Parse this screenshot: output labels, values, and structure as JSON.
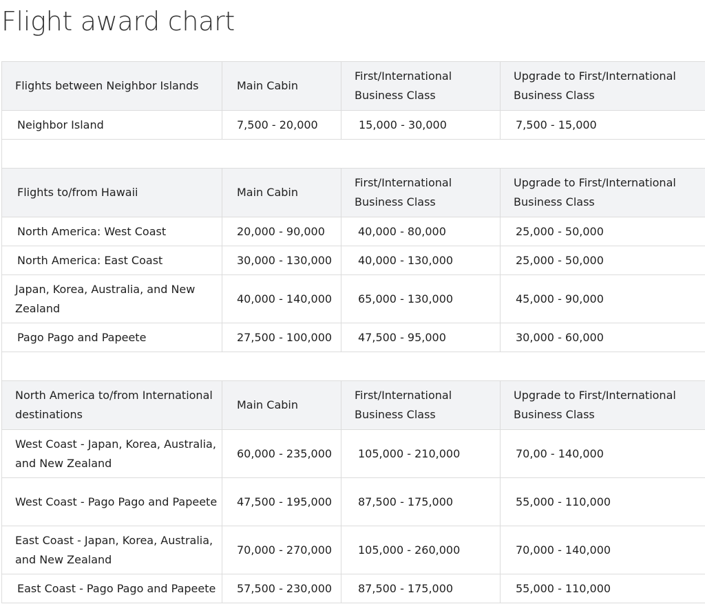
{
  "page": {
    "title": "Flight award chart"
  },
  "sections": [
    {
      "header": {
        "route": "Flights between Neighbor Islands",
        "main_cabin": "Main Cabin",
        "first": "First/International Business Class",
        "upgrade": "Upgrade to First/International Business Class"
      },
      "rows": [
        {
          "route": "Neighbor Island",
          "main_cabin": "7,500 - 20,000",
          "first": "15,000 - 30,000",
          "upgrade": "7,500 - 15,000"
        }
      ]
    },
    {
      "header": {
        "route": "Flights to/from Hawaii",
        "main_cabin": "Main Cabin",
        "first": "First/International Business Class",
        "upgrade": "Upgrade to First/International Business Class"
      },
      "rows": [
        {
          "route": "North America: West Coast",
          "main_cabin": "20,000 - 90,000",
          "first": "40,000 - 80,000",
          "upgrade": "25,000 - 50,000"
        },
        {
          "route": "North America: East Coast",
          "main_cabin": "30,000 - 130,000",
          "first": "40,000 - 130,000",
          "upgrade": "25,000 - 50,000"
        },
        {
          "route": "Japan, Korea, Australia, and New Zealand",
          "main_cabin": "40,000 - 140,000",
          "first": "65,000 - 130,000",
          "upgrade": "45,000 - 90,000"
        },
        {
          "route": "Pago Pago and Papeete",
          "main_cabin": "27,500 - 100,000",
          "first": "47,500 - 95,000",
          "upgrade": "30,000 - 60,000"
        }
      ]
    },
    {
      "header": {
        "route": "North America to/from International destinations",
        "main_cabin": "Main Cabin",
        "first": "First/International Business Class",
        "upgrade": "Upgrade to First/International Business Class"
      },
      "rows": [
        {
          "route": "West Coast - Japan, Korea, Australia, and New Zealand",
          "main_cabin": "60,000 - 235,000",
          "first": "105,000 - 210,000",
          "upgrade": "70,00 - 140,000"
        },
        {
          "route": "West Coast - Pago Pago and Papeete",
          "main_cabin": "47,500 - 195,000",
          "first": "87,500 - 175,000",
          "upgrade": "55,000 - 110,000"
        },
        {
          "route": "East Coast - Japan, Korea, Australia, and New Zealand",
          "main_cabin": "70,000 - 270,000",
          "first": "105,000 - 260,000",
          "upgrade": "70,000 - 140,000"
        },
        {
          "route": "East Coast - Pago Pago and Papeete",
          "main_cabin": "57,500 - 230,000",
          "first": "87,500 - 175,000",
          "upgrade": "55,000 - 110,000"
        }
      ]
    }
  ]
}
